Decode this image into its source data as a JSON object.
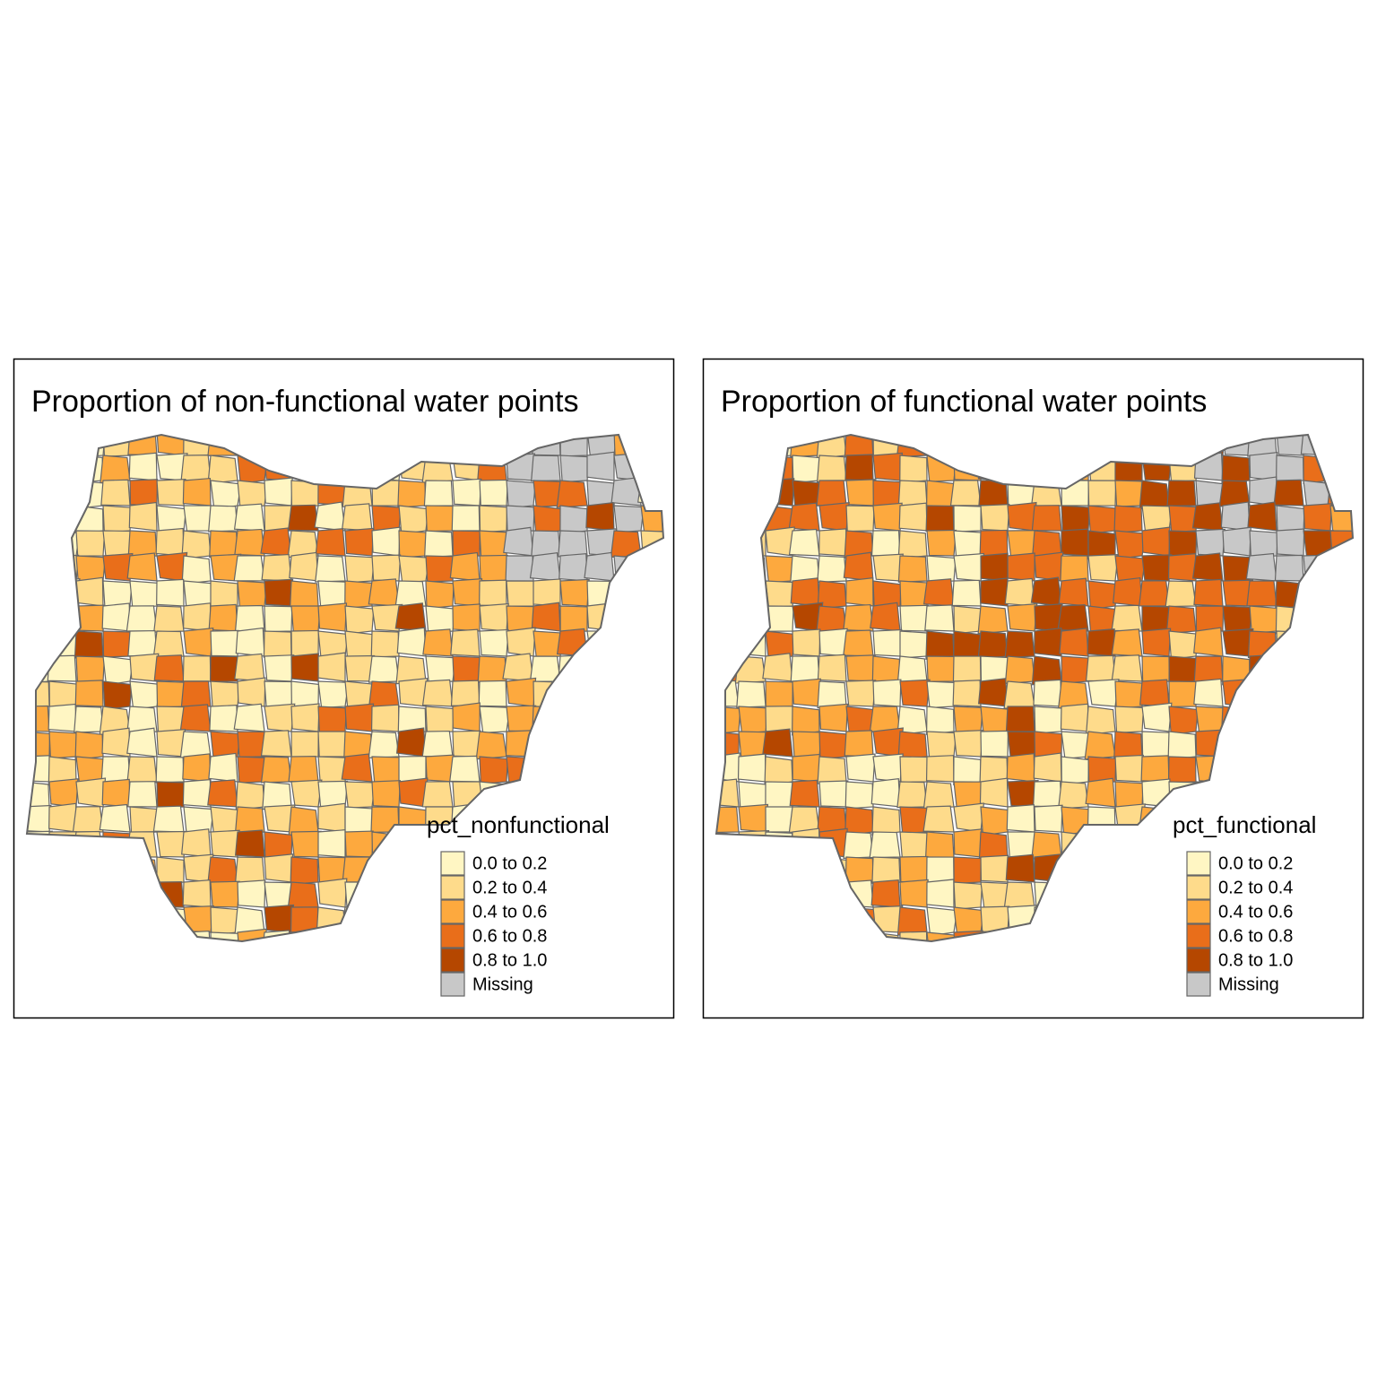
{
  "panels": [
    {
      "title": "Proportion of non-functional water points",
      "legend": {
        "title": "pct_nonfunctional",
        "items": [
          {
            "label": "0.0 to 0.2",
            "color": "#fff6c3"
          },
          {
            "label": "0.2 to 0.4",
            "color": "#fedb8b"
          },
          {
            "label": "0.4 to 0.6",
            "color": "#fda93e"
          },
          {
            "label": "0.6 to 0.8",
            "color": "#e96e1a"
          },
          {
            "label": "0.8 to 1.0",
            "color": "#b54700"
          },
          {
            "label": "Missing",
            "color": "#c8c8c8"
          }
        ]
      }
    },
    {
      "title": "Proportion of functional water points",
      "legend": {
        "title": "pct_functional",
        "items": [
          {
            "label": "0.0 to 0.2",
            "color": "#fff6c3"
          },
          {
            "label": "0.2 to 0.4",
            "color": "#fedb8b"
          },
          {
            "label": "0.4 to 0.6",
            "color": "#fda93e"
          },
          {
            "label": "0.6 to 0.8",
            "color": "#e96e1a"
          },
          {
            "label": "0.8 to 1.0",
            "color": "#b54700"
          },
          {
            "label": "Missing",
            "color": "#c8c8c8"
          }
        ]
      }
    }
  ]
}
